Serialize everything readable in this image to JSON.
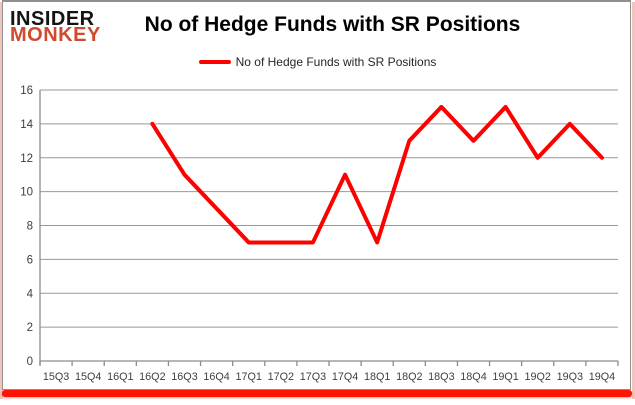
{
  "header": {
    "logo": {
      "line1": "INSIDER",
      "line2": "MONKEY"
    },
    "title": "No of Hedge Funds with SR Positions"
  },
  "legend": {
    "label": "No of Hedge Funds with SR Positions"
  },
  "colors": {
    "series": "#fe0000",
    "logo_black": "#141414",
    "logo_red": "#d04a2f",
    "gridline": "#999999",
    "axis_line": "#8c8c8c",
    "axis_text": "#3f3f3f",
    "frame": "#8f8f8f",
    "accent_bar": "#fd1503"
  },
  "chart_data": {
    "type": "line",
    "title": "No of Hedge Funds with SR Positions",
    "xlabel": "",
    "ylabel": "",
    "categories": [
      "15Q3",
      "15Q4",
      "16Q1",
      "16Q2",
      "16Q3",
      "16Q4",
      "17Q1",
      "17Q2",
      "17Q3",
      "17Q4",
      "18Q1",
      "18Q2",
      "18Q3",
      "18Q4",
      "19Q1",
      "19Q2",
      "19Q3",
      "19Q4"
    ],
    "series": [
      {
        "name": "No of Hedge Funds with SR Positions",
        "color": "#fe0000",
        "values": [
          null,
          null,
          null,
          14,
          11,
          9,
          7,
          7,
          7,
          11,
          7,
          13,
          15,
          13,
          15,
          12,
          14,
          12
        ]
      }
    ],
    "ylim": [
      0,
      16
    ],
    "yticks": [
      0,
      2,
      4,
      6,
      8,
      10,
      12,
      14,
      16
    ],
    "grid": true,
    "legend_position": "top-center"
  }
}
